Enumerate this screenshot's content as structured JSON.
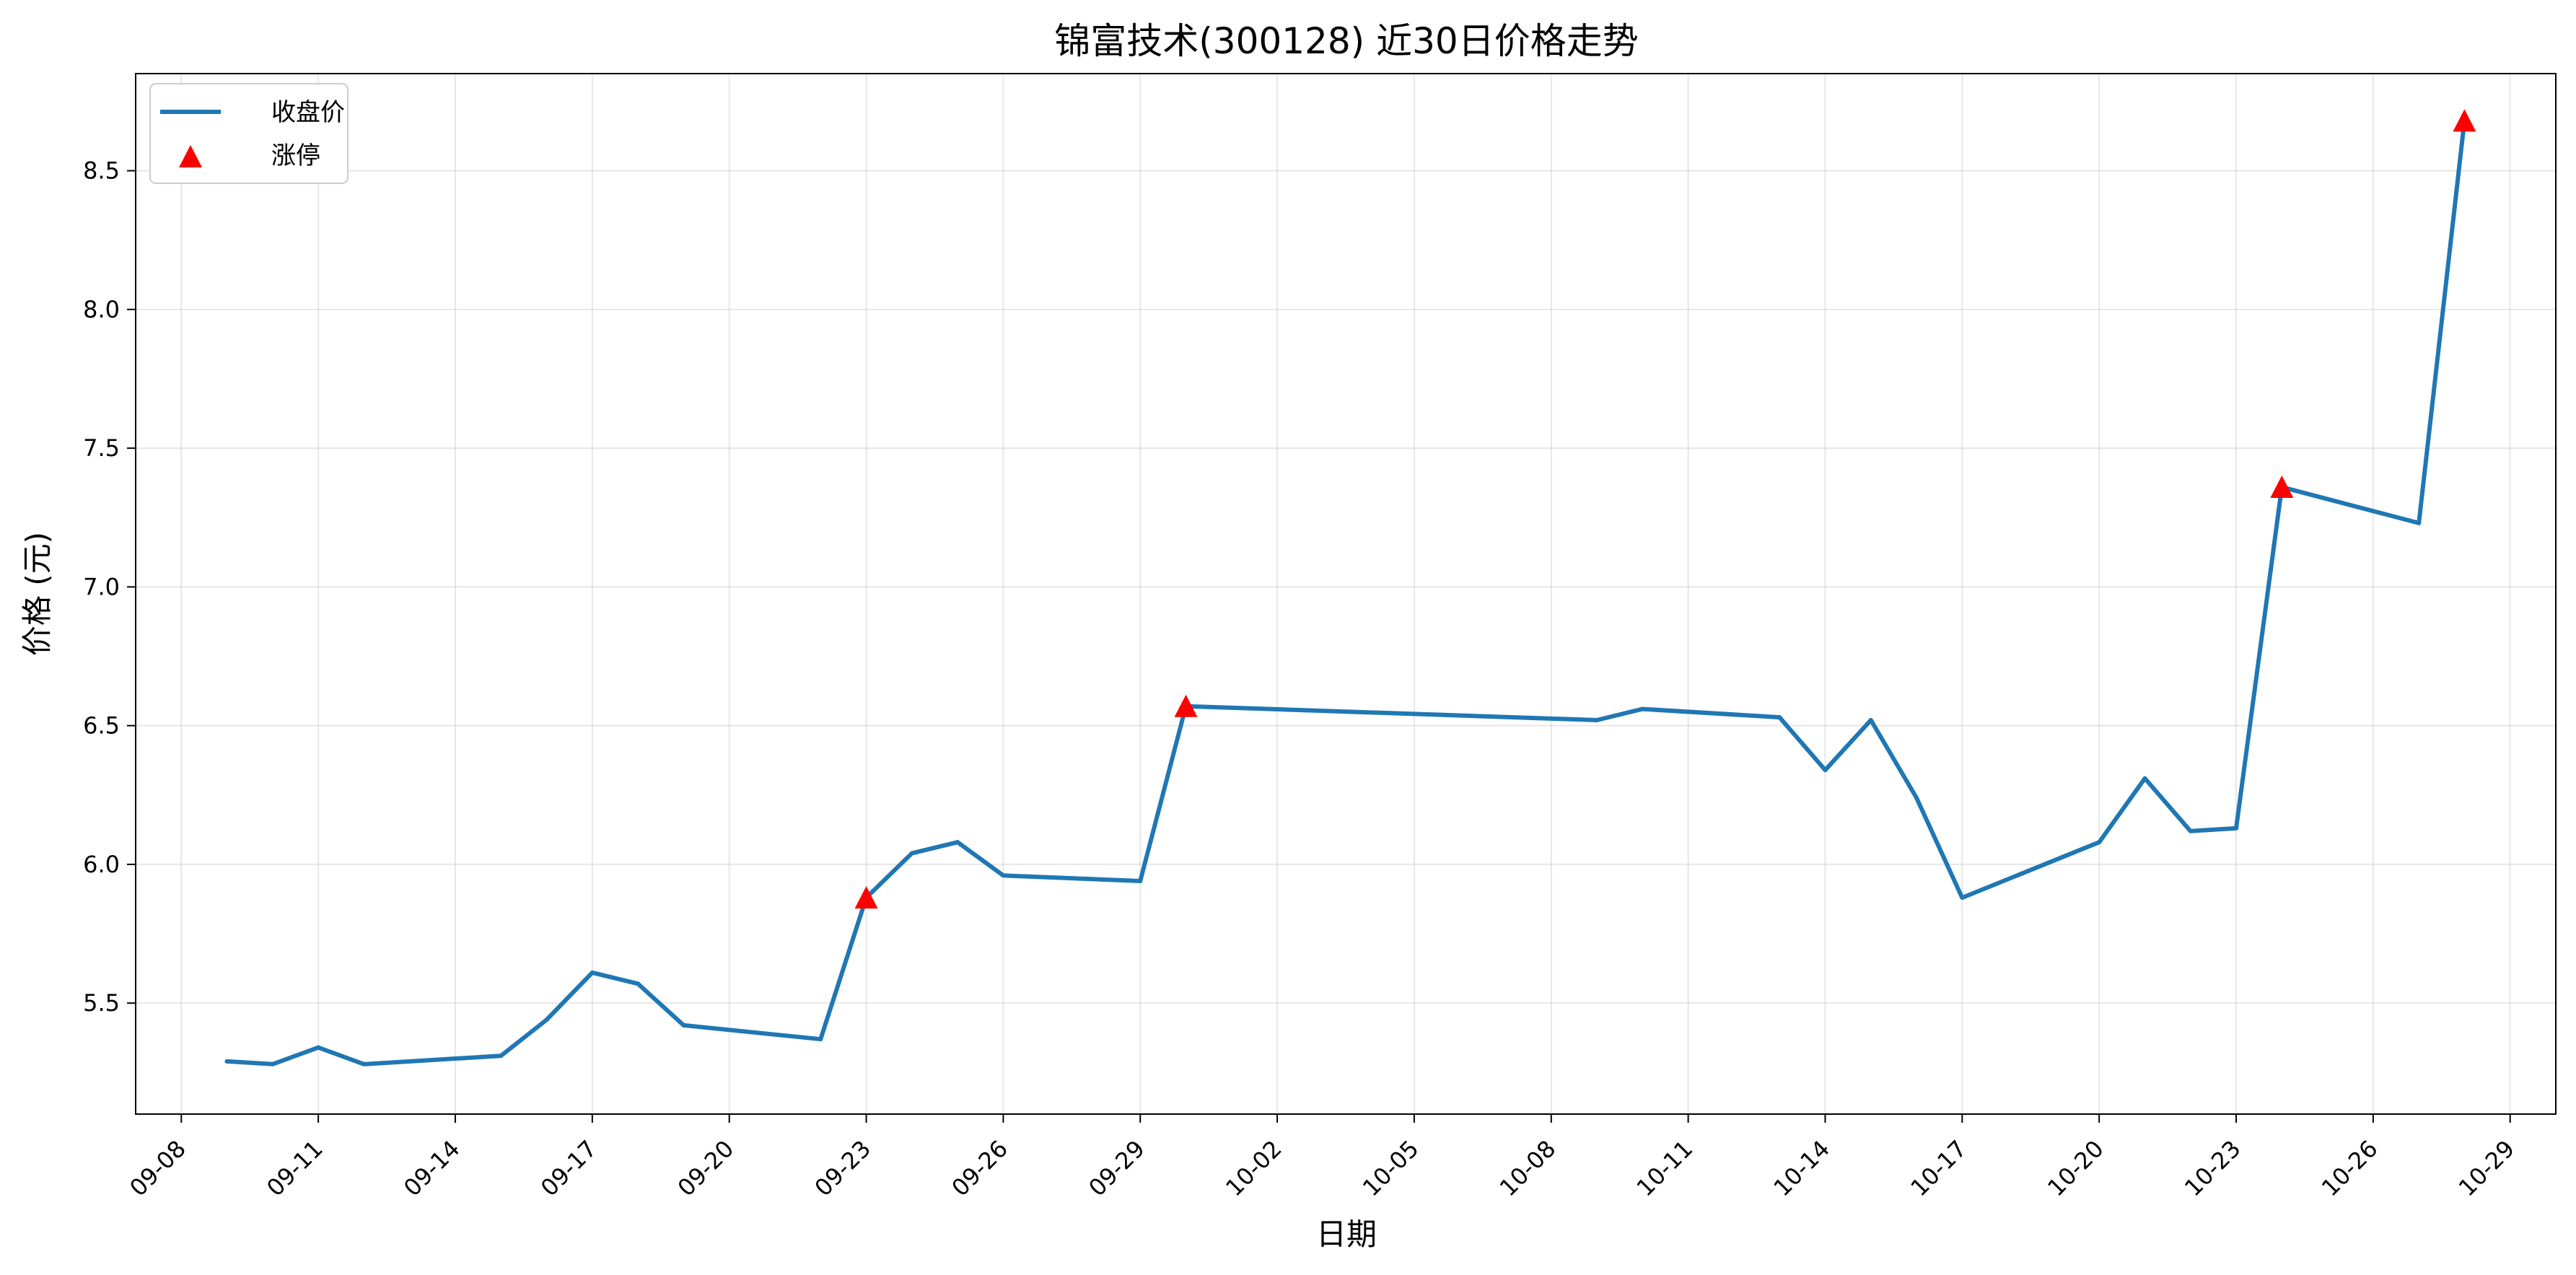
{
  "chart_data": {
    "type": "line",
    "title": "锦富技术(300128) 近30日价格走势",
    "xlabel": "日期",
    "ylabel": "价格 (元)",
    "x_ticks": [
      "09-08",
      "09-11",
      "09-14",
      "09-17",
      "09-20",
      "09-23",
      "09-26",
      "09-29",
      "10-02",
      "10-05",
      "10-08",
      "10-11",
      "10-14",
      "10-17",
      "10-20",
      "10-23",
      "10-26",
      "10-29"
    ],
    "x_range": [
      "2024-09-07",
      "2024-10-30"
    ],
    "y_ticks": [
      "5.5",
      "6.0",
      "6.5",
      "7.0",
      "7.5",
      "8.0",
      "8.5"
    ],
    "ylim": [
      5.1,
      8.85
    ],
    "grid": true,
    "legend_position": "top-left",
    "series": [
      {
        "name": "收盘价",
        "color": "#1f77b4",
        "style": "line",
        "points": [
          {
            "x": "2024-09-09",
            "y": 5.29
          },
          {
            "x": "2024-09-10",
            "y": 5.28
          },
          {
            "x": "2024-09-11",
            "y": 5.34
          },
          {
            "x": "2024-09-12",
            "y": 5.28
          },
          {
            "x": "2024-09-15",
            "y": 5.31
          },
          {
            "x": "2024-09-16",
            "y": 5.44
          },
          {
            "x": "2024-09-17",
            "y": 5.61
          },
          {
            "x": "2024-09-18",
            "y": 5.57
          },
          {
            "x": "2024-09-19",
            "y": 5.42
          },
          {
            "x": "2024-09-22",
            "y": 5.37
          },
          {
            "x": "2024-09-23",
            "y": 5.88
          },
          {
            "x": "2024-09-24",
            "y": 6.04
          },
          {
            "x": "2024-09-25",
            "y": 6.08
          },
          {
            "x": "2024-09-26",
            "y": 5.96
          },
          {
            "x": "2024-09-29",
            "y": 5.94
          },
          {
            "x": "2024-09-30",
            "y": 6.57
          },
          {
            "x": "2024-10-09",
            "y": 6.52
          },
          {
            "x": "2024-10-10",
            "y": 6.56
          },
          {
            "x": "2024-10-13",
            "y": 6.53
          },
          {
            "x": "2024-10-14",
            "y": 6.34
          },
          {
            "x": "2024-10-15",
            "y": 6.52
          },
          {
            "x": "2024-10-16",
            "y": 6.24
          },
          {
            "x": "2024-10-17",
            "y": 5.88
          },
          {
            "x": "2024-10-20",
            "y": 6.08
          },
          {
            "x": "2024-10-21",
            "y": 6.31
          },
          {
            "x": "2024-10-22",
            "y": 6.12
          },
          {
            "x": "2024-10-23",
            "y": 6.13
          },
          {
            "x": "2024-10-24",
            "y": 7.36
          },
          {
            "x": "2024-10-27",
            "y": 7.23
          },
          {
            "x": "2024-10-28",
            "y": 8.68
          }
        ]
      },
      {
        "name": "涨停",
        "color": "#ff0000",
        "style": "triangle-marker",
        "points": [
          {
            "x": "2024-09-23",
            "y": 5.88
          },
          {
            "x": "2024-09-30",
            "y": 6.57
          },
          {
            "x": "2024-10-24",
            "y": 7.36
          },
          {
            "x": "2024-10-28",
            "y": 8.68
          }
        ]
      }
    ]
  }
}
